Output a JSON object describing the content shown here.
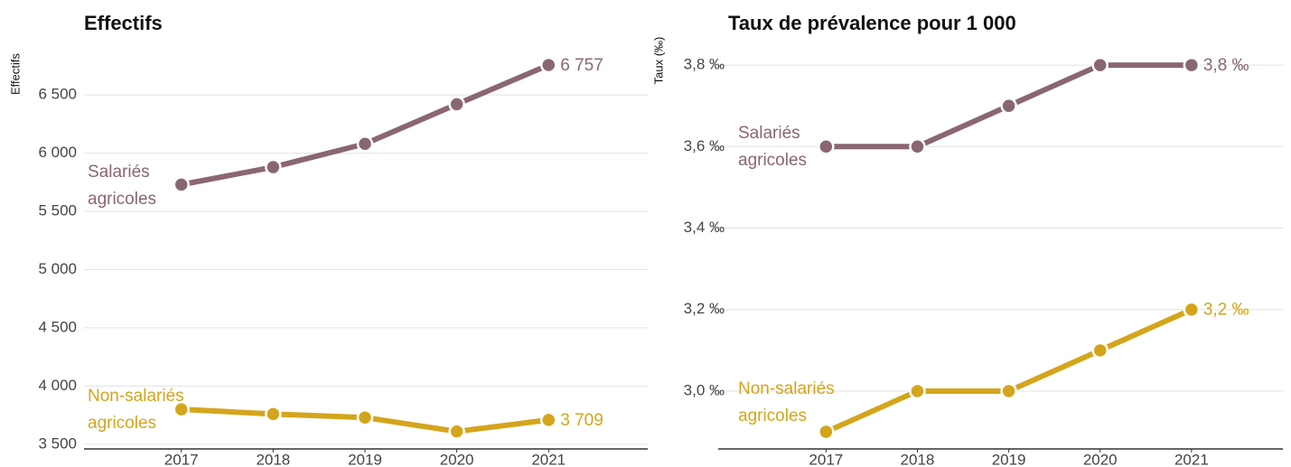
{
  "chart_data": [
    {
      "type": "line",
      "title": "Effectifs",
      "y_label": "Effectifs",
      "x": [
        2017,
        2018,
        2019,
        2020,
        2021
      ],
      "xlim": [
        2015.94,
        2022.08
      ],
      "xticks": [
        2017,
        2018,
        2019,
        2020,
        2021
      ],
      "ylim": [
        3460,
        6850
      ],
      "yticks": [
        {
          "value": 3500,
          "label": "3 500"
        },
        {
          "value": 4000,
          "label": "4 000"
        },
        {
          "value": 4500,
          "label": "4 500"
        },
        {
          "value": 5000,
          "label": "5 000"
        },
        {
          "value": 5500,
          "label": "5 500"
        },
        {
          "value": 6000,
          "label": "6 000"
        },
        {
          "value": 6500,
          "label": "6 500"
        }
      ],
      "grid": true,
      "series": [
        {
          "name": "Salariés agricoles",
          "color": "#8a6673",
          "values": [
            5730,
            5880,
            6080,
            6420,
            6757
          ],
          "value_labels": [
            null,
            null,
            null,
            null,
            "6 757"
          ]
        },
        {
          "name": "Non-salariés agricoles",
          "color": "#d4a51c",
          "values": [
            3800,
            3760,
            3730,
            3610,
            3709
          ],
          "value_labels": [
            null,
            null,
            null,
            null,
            "3 709"
          ]
        }
      ]
    },
    {
      "type": "line",
      "title": "Taux de prévalence pour 1 000",
      "y_label": "Taux (‰)",
      "x": [
        2017,
        2018,
        2019,
        2020,
        2021
      ],
      "xlim": [
        2015.82,
        2022.0
      ],
      "xticks": [
        2017,
        2018,
        2019,
        2020,
        2021
      ],
      "ylim": [
        2.858,
        3.86
      ],
      "yticks": [
        {
          "value": 3.0,
          "label": "3,0 ‰"
        },
        {
          "value": 3.2,
          "label": "3,2 ‰"
        },
        {
          "value": 3.4,
          "label": "3,4 ‰"
        },
        {
          "value": 3.6,
          "label": "3,6 ‰"
        },
        {
          "value": 3.8,
          "label": "3,8 ‰"
        }
      ],
      "grid": true,
      "series": [
        {
          "name": "Salariés agricoles",
          "color": "#8a6673",
          "values": [
            3.6,
            3.6,
            3.7,
            3.8,
            3.8
          ],
          "value_labels": [
            null,
            null,
            null,
            null,
            "3,8 ‰"
          ]
        },
        {
          "name": "Non-salariés agricoles",
          "color": "#d4a51c",
          "values": [
            2.9,
            3.0,
            3.0,
            3.1,
            3.2
          ],
          "value_labels": [
            null,
            null,
            null,
            null,
            "3,2 ‰"
          ]
        }
      ]
    }
  ]
}
